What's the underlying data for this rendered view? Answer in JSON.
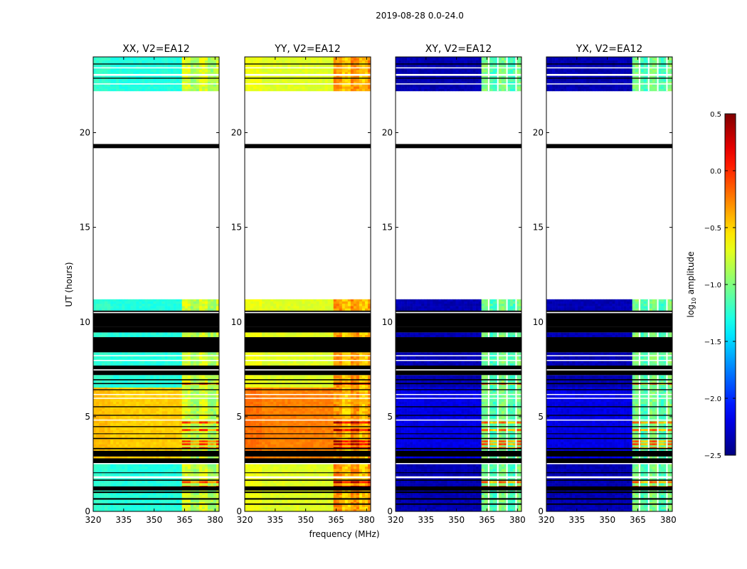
{
  "figure": {
    "suptitle": "2019-08-28 0.0-24.0",
    "ylabel": "UT (hours)",
    "xlabel": "frequency (MHz)",
    "colorbar_label_base": "log",
    "colorbar_label_sub": "10",
    "colorbar_label_rest": " amplitude"
  },
  "colors": {
    "background": "#ffffff",
    "flagged": "#000000",
    "frame": "#000000"
  },
  "chart_data": {
    "type": "heatmap",
    "colormap": "jet",
    "x": {
      "range": [
        320,
        382
      ],
      "ticks": [
        320,
        335,
        350,
        365,
        380
      ]
    },
    "y": {
      "range": [
        0,
        24
      ],
      "ticks": [
        0,
        5,
        10,
        15,
        20
      ]
    },
    "colorbar": {
      "label": "log10 amplitude",
      "range": [
        -2.5,
        0.5
      ],
      "ticks": [
        -2.5,
        -2.0,
        -1.5,
        -1.0,
        -0.5,
        0.0,
        0.5
      ],
      "tick_labels": [
        "−2.5",
        "−2.0",
        "−1.5",
        "−1.0",
        "−0.5",
        "0.0",
        "0.5"
      ]
    },
    "data_blocks": [
      [
        0.0,
        2.5
      ],
      [
        2.8,
        7.2
      ],
      [
        7.7,
        8.4
      ],
      [
        9.2,
        9.45
      ],
      [
        10.6,
        11.2
      ],
      [
        22.2,
        24.0
      ]
    ],
    "flagged_blocks": [
      [
        0.35,
        0.42
      ],
      [
        0.62,
        0.7
      ],
      [
        0.97,
        1.05
      ],
      [
        1.1,
        1.32
      ],
      [
        1.62,
        1.68
      ],
      [
        2.02,
        2.06
      ],
      [
        2.55,
        2.8
      ],
      [
        2.9,
        3.2
      ],
      [
        3.28,
        3.35
      ],
      [
        3.82,
        3.88
      ],
      [
        4.08,
        4.12
      ],
      [
        4.45,
        4.5
      ],
      [
        5.05,
        5.1
      ],
      [
        5.5,
        5.55
      ],
      [
        6.4,
        6.45
      ],
      [
        6.72,
        6.78
      ],
      [
        6.92,
        6.98
      ],
      [
        7.2,
        7.45
      ],
      [
        7.5,
        7.7
      ],
      [
        8.4,
        9.2
      ],
      [
        9.45,
        9.75
      ],
      [
        9.75,
        10.45
      ],
      [
        10.45,
        10.6
      ],
      [
        19.18,
        19.4
      ],
      [
        22.85,
        22.9
      ],
      [
        23.6,
        23.65
      ]
    ],
    "gap_blocks": [
      [
        1.75,
        1.85
      ],
      [
        2.5,
        2.55
      ],
      [
        4.82,
        4.85
      ],
      [
        5.97,
        6.0
      ],
      [
        6.17,
        6.2
      ],
      [
        7.45,
        7.5
      ],
      [
        7.95,
        8.0
      ],
      [
        8.2,
        8.25
      ],
      [
        10.5,
        10.53
      ],
      [
        22.55,
        22.6
      ],
      [
        23.0,
        23.1
      ],
      [
        23.4,
        23.45
      ]
    ],
    "panels": [
      {
        "title": "XX, V2=EA12",
        "levels": {
          "base": -1.28,
          "flare": -0.48,
          "low_band": -1.22,
          "high_band": -0.78,
          "band_start": 363,
          "spike_max": 0.05
        },
        "bright_rows": [
          1.25,
          1.5,
          3.3,
          3.5,
          3.65,
          4.25,
          4.65,
          6.7
        ]
      },
      {
        "title": "YY, V2=EA12",
        "levels": {
          "base": -0.72,
          "flare": -0.25,
          "low_band": -0.62,
          "high_band": -0.35,
          "band_start": 363,
          "spike_max": 0.45
        },
        "bright_rows": [
          1.25,
          1.5,
          3.3,
          3.5,
          3.65,
          4.25,
          4.65,
          6.7
        ]
      },
      {
        "title": "XY, V2=EA12",
        "levels": {
          "base": -2.35,
          "flare": -2.2,
          "low_band": -2.45,
          "high_band": -1.05,
          "band_start": 362,
          "spike_max": -0.05
        },
        "bright_rows": [
          1.25,
          1.5,
          3.3,
          3.5,
          3.65,
          4.25,
          4.65,
          6.7
        ]
      },
      {
        "title": "YX, V2=EA12",
        "levels": {
          "base": -2.35,
          "flare": -2.2,
          "low_band": -2.45,
          "high_band": -1.05,
          "band_start": 362,
          "spike_max": -0.05
        },
        "bright_rows": [
          1.25,
          1.5,
          3.3,
          3.5,
          3.65,
          4.25,
          4.65,
          6.7
        ]
      }
    ]
  }
}
